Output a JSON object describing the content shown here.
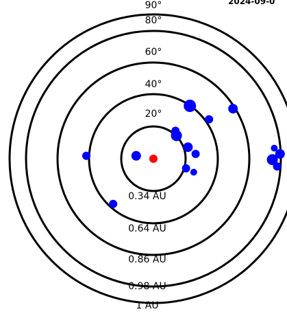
{
  "header": {
    "date_text": "2024-09-0"
  },
  "colors": {
    "ring": "#000000",
    "center_point": "#ff0000",
    "points": "#0000ff"
  },
  "chart_data": {
    "type": "scatter",
    "title": "",
    "xlabel": "",
    "ylabel": "",
    "grid": false,
    "center": {
      "x": 0,
      "y": 0,
      "color": "#ff0000"
    },
    "rings": [
      {
        "angle_label": "20°",
        "distance_label": "0.34 AU",
        "distance_au": 0.34
      },
      {
        "angle_label": "40°",
        "distance_label": "0.64 AU",
        "distance_au": 0.64
      },
      {
        "angle_label": "60°",
        "distance_label": "0.86 AU",
        "distance_au": 0.86
      },
      {
        "angle_label": "80°",
        "distance_label": "0.98 AU",
        "distance_au": 0.98
      },
      {
        "angle_label": "90°",
        "distance_label": "1 AU",
        "distance_au": 1.0
      }
    ],
    "x": [
      0.38,
      0.83,
      0.23,
      0.58,
      0.24,
      0.36,
      -0.18,
      0.44,
      0.42,
      0.34,
      1.29,
      1.24,
      1.32,
      1.26,
      -0.7,
      -0.42
    ],
    "y": [
      0.55,
      0.52,
      0.29,
      0.41,
      0.24,
      0.12,
      0.03,
      0.05,
      -0.14,
      -0.1,
      -0.08,
      -0.01,
      0.05,
      0.11,
      0.03,
      -0.47
    ],
    "sizes": [
      9,
      7,
      6,
      6,
      8,
      7,
      7,
      6,
      5,
      6,
      6,
      8,
      7,
      5,
      6,
      6
    ]
  }
}
